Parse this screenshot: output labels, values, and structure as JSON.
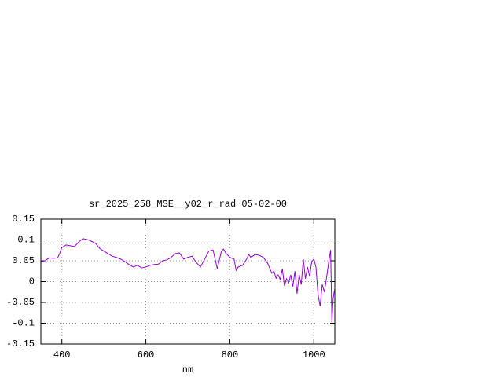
{
  "chart_data": {
    "type": "line",
    "title": "sr_2025_258_MSE__y02_r_rad 05-02-00",
    "x_label": "nm",
    "xlim": [
      350,
      1050
    ],
    "xticks": [
      400,
      600,
      800,
      1000
    ],
    "ylim": [
      -0.15,
      0.15
    ],
    "yticks": [
      0.15,
      0.1,
      0.05,
      0,
      -0.05,
      -0.1,
      -0.15
    ],
    "grid": true,
    "series": [
      {
        "color": "#9400d3",
        "x": [
          350,
          360,
          370,
          380,
          390,
          395,
          400,
          410,
          420,
          430,
          440,
          450,
          460,
          470,
          480,
          490,
          500,
          510,
          520,
          530,
          540,
          550,
          560,
          570,
          580,
          590,
          600,
          610,
          620,
          630,
          640,
          650,
          660,
          670,
          680,
          690,
          700,
          710,
          720,
          730,
          740,
          750,
          760,
          765,
          770,
          780,
          785,
          790,
          800,
          810,
          815,
          820,
          830,
          840,
          845,
          850,
          860,
          870,
          880,
          890,
          900,
          905,
          910,
          915,
          920,
          925,
          930,
          935,
          940,
          945,
          950,
          955,
          960,
          965,
          970,
          975,
          980,
          985,
          990,
          995,
          1000,
          1005,
          1010,
          1015,
          1020,
          1025,
          1030,
          1035,
          1040,
          1043,
          1046,
          1050
        ],
        "values": [
          0.048,
          0.05,
          0.057,
          0.056,
          0.057,
          0.068,
          0.082,
          0.088,
          0.086,
          0.084,
          0.095,
          0.103,
          0.101,
          0.097,
          0.092,
          0.08,
          0.073,
          0.067,
          0.061,
          0.058,
          0.054,
          0.048,
          0.041,
          0.035,
          0.039,
          0.033,
          0.035,
          0.039,
          0.041,
          0.042,
          0.05,
          0.052,
          0.058,
          0.067,
          0.069,
          0.054,
          0.058,
          0.061,
          0.046,
          0.035,
          0.054,
          0.073,
          0.076,
          0.054,
          0.031,
          0.073,
          0.078,
          0.069,
          0.058,
          0.054,
          0.027,
          0.035,
          0.039,
          0.054,
          0.065,
          0.058,
          0.065,
          0.063,
          0.058,
          0.044,
          0.02,
          0.025,
          0.008,
          0.016,
          0.005,
          0.031,
          -0.01,
          0.007,
          -0.003,
          0.016,
          -0.012,
          0.025,
          -0.029,
          0.016,
          -0.007,
          0.054,
          0.007,
          0.035,
          0.012,
          0.048,
          0.054,
          0.035,
          -0.031,
          -0.059,
          -0.007,
          -0.025,
          0.007,
          0.044,
          0.076,
          -0.097,
          -0.041,
          -0.014
        ]
      }
    ]
  }
}
